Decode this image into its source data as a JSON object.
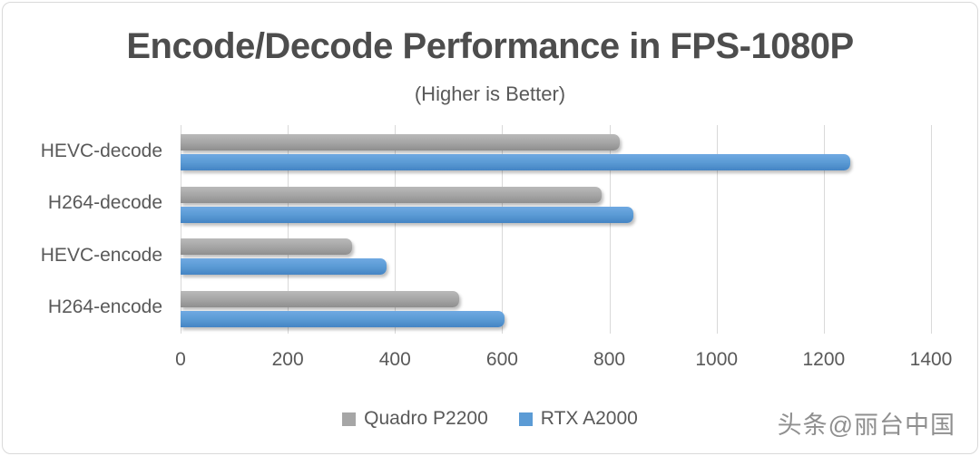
{
  "chart_data": {
    "type": "bar",
    "orientation": "horizontal",
    "title": "Encode/Decode Performance in FPS-1080P",
    "subtitle": "(Higher is Better)",
    "categories": [
      "HEVC-decode",
      "H264-decode",
      "HEVC-encode",
      "H264-encode"
    ],
    "series": [
      {
        "name": "Quadro P2200",
        "color": "#a6a6a6",
        "values": [
          820,
          785,
          320,
          520
        ]
      },
      {
        "name": "RTX A2000",
        "color": "#5b9bd5",
        "values": [
          1250,
          845,
          385,
          605
        ]
      }
    ],
    "xlabel": "",
    "ylabel": "",
    "xlim": [
      0,
      1400
    ],
    "xticks": [
      0,
      200,
      400,
      600,
      800,
      1000,
      1200,
      1400
    ],
    "grid": true,
    "legend_position": "bottom"
  },
  "legend": {
    "items": [
      {
        "label": "Quadro P2200",
        "color": "#a6a6a6"
      },
      {
        "label": "RTX A2000",
        "color": "#5b9bd5"
      }
    ]
  },
  "watermark": "头条@丽台中国",
  "colors": {
    "series_gray": "#a6a6a6",
    "series_blue": "#5b9bd5",
    "text": "#595959",
    "title_text": "#4d4d4d",
    "gridline": "#d9d9d9",
    "frame_border": "#d9d9d9"
  }
}
